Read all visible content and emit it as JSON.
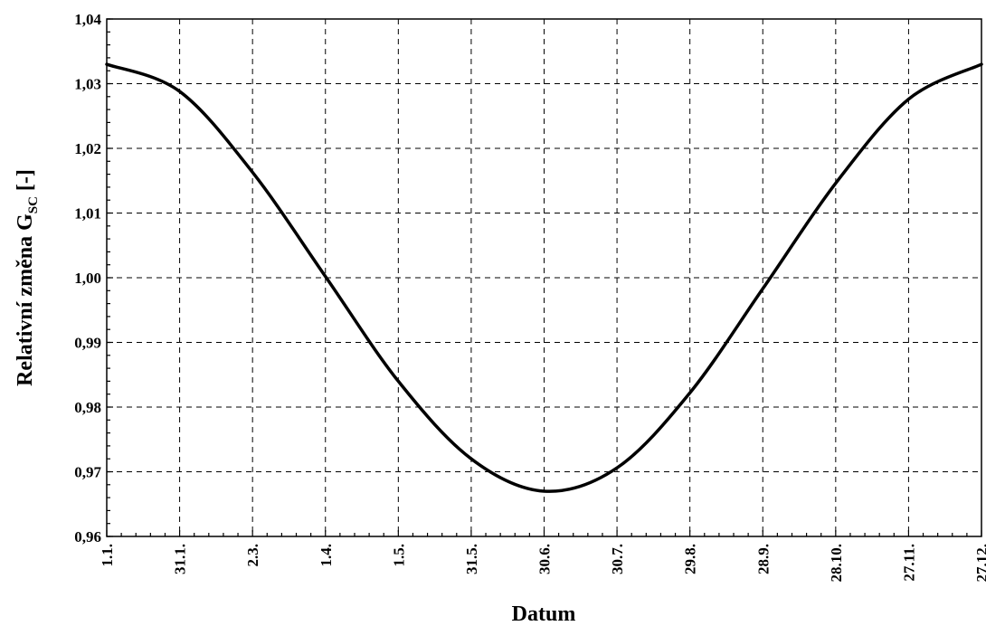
{
  "chart_data": {
    "type": "line",
    "xlabel": "Datum",
    "ylabel_main": "Relativní změna G",
    "ylabel_sub": "SC",
    "ylabel_tail": " [-]",
    "ylim": [
      0.96,
      1.04
    ],
    "y_ticks": [
      "0,96",
      "0,97",
      "0,98",
      "0,99",
      "1,00",
      "1,01",
      "1,02",
      "1,03",
      "1,04"
    ],
    "y_tick_values": [
      0.96,
      0.97,
      0.98,
      0.99,
      1.0,
      1.01,
      1.02,
      1.03,
      1.04
    ],
    "x_ticks": [
      "1.1.",
      "31.1.",
      "2.3.",
      "1.4.",
      "1.5.",
      "31.5.",
      "30.6.",
      "30.7.",
      "29.8.",
      "28.9.",
      "28.10.",
      "27.11.",
      "27.12."
    ],
    "x_tick_values": [
      "1.1.",
      "31.1.",
      "2.3.",
      "1.4.",
      "1.5.",
      "31.5.",
      "30.6.",
      "30.7.",
      "29.8.",
      "28.9.",
      "28.10.",
      "27.11.",
      "27.12."
    ],
    "grid": true,
    "series": [
      {
        "x": [
          "1.1.",
          "31.1.",
          "2.3.",
          "1.4.",
          "1.5.",
          "31.5.",
          "30.6.",
          "30.7.",
          "29.8.",
          "28.9.",
          "28.10.",
          "27.11.",
          "27.12."
        ],
        "y": [
          1.033,
          1.0288,
          1.0163,
          1.0002,
          0.984,
          0.972,
          0.967,
          0.9706,
          0.9822,
          0.9983,
          1.0146,
          1.0276,
          1.033
        ],
        "color": "#000000"
      }
    ]
  }
}
